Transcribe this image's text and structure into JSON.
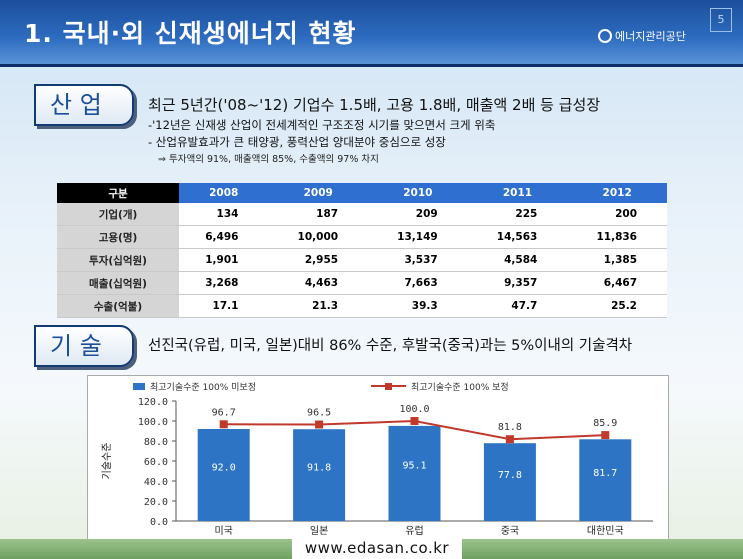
{
  "title": "1. 국내·외 신재생에너지 현황",
  "logo": {
    "text": "에너지관리공단"
  },
  "page_number": "5",
  "industry": {
    "tab": "산 업",
    "headline": "최근 5년간('08~'12) 기업수 1.5배, 고용 1.8배, 매출액 2배 등 급성장",
    "bullet1": "-'12년은 신재생 산업이 전세계적인 구조조정 시기를 맞으면서 크게 위축",
    "bullet2": "- 산업유발효과가 큰 태양광, 풍력산업 양대분야 중심으로 성장",
    "bullet3": "⇒  투자액의 91%, 매출액의 85%, 수출액의 97% 차지"
  },
  "table": {
    "header_label": "구분",
    "years": [
      "2008",
      "2009",
      "2010",
      "2011",
      "2012"
    ],
    "rows": [
      {
        "label": "기업(개)",
        "values": [
          "134",
          "187",
          "209",
          "225",
          "200"
        ]
      },
      {
        "label": "고용(명)",
        "values": [
          "6,496",
          "10,000",
          "13,149",
          "14,563",
          "11,836"
        ]
      },
      {
        "label": "투자(십억원)",
        "values": [
          "1,901",
          "2,955",
          "3,537",
          "4,584",
          "1,385"
        ]
      },
      {
        "label": "매출(십억원)",
        "values": [
          "3,268",
          "4,463",
          "7,663",
          "9,357",
          "6,467"
        ]
      },
      {
        "label": "수출(억불)",
        "values": [
          "17.1",
          "21.3",
          "39.3",
          "47.7",
          "25.2"
        ]
      }
    ]
  },
  "tech": {
    "tab": "기 술",
    "headline": "선진국(유럽, 미국, 일본)대비 86% 수준,  후발국(중국)과는 5%이내의 기술격차"
  },
  "chart_data": {
    "type": "bar",
    "categories": [
      "미국",
      "일본",
      "유럽",
      "중국",
      "대한민국"
    ],
    "series": [
      {
        "name": "최고기술수준 100% 미보정",
        "type": "bar",
        "color": "#2e74c4",
        "values": [
          92.0,
          91.8,
          95.1,
          77.8,
          81.7
        ]
      },
      {
        "name": "최고기술수준 100% 보정",
        "type": "line",
        "color": "#c0392b",
        "values": [
          96.7,
          96.5,
          100.0,
          81.8,
          85.9
        ]
      }
    ],
    "bar_labels": [
      "92.0",
      "91.8",
      "95.1",
      "77.8",
      "81.7"
    ],
    "line_labels": [
      "96.7",
      "96.5",
      "100.0",
      "81.8",
      "85.9"
    ],
    "ylabel": "기술수준",
    "ylim": [
      0,
      120
    ],
    "yticks": [
      "0.0",
      "20.0",
      "40.0",
      "60.0",
      "80.0",
      "100.0",
      "120.0"
    ],
    "legend_position": "top",
    "grid": false
  },
  "footer": {
    "url": "www.edasan.co.kr"
  }
}
